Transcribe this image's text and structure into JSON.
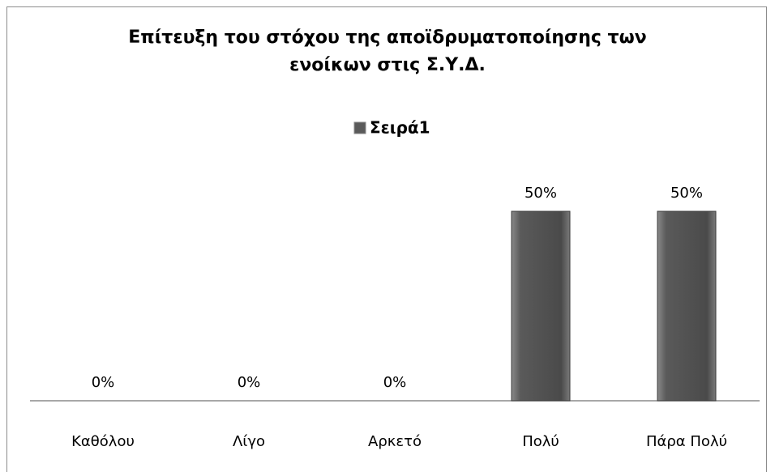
{
  "chart_data": {
    "type": "bar",
    "title": "Επίτευξη του στόχου της αποϊδρυματοποίησης των ενοίκων στις Σ.Υ.Δ.",
    "categories": [
      "Καθόλου",
      "Λίγο",
      "Αρκετό",
      "Πολύ",
      "Πάρα Πολύ"
    ],
    "series": [
      {
        "name": "Σειρά1",
        "color": "#5a5a5a",
        "values": [
          0,
          0,
          0,
          50,
          50
        ],
        "value_labels": [
          "0%",
          "0%",
          "0%",
          "50%",
          "50%"
        ]
      }
    ],
    "legend": "top"
  }
}
